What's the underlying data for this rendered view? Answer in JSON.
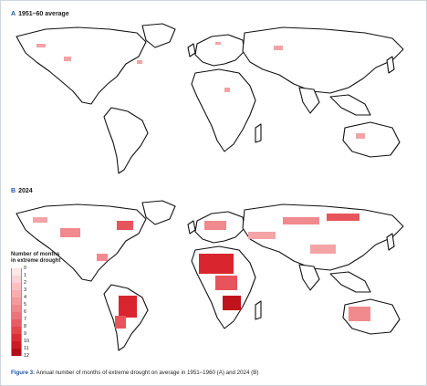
{
  "panels": [
    {
      "letter": "A",
      "title": "1951–60 average"
    },
    {
      "letter": "B",
      "title": "2024"
    }
  ],
  "legend": {
    "title": "Number of months in extreme drought",
    "levels": [
      "0",
      "1",
      "2",
      "3",
      "4",
      "5",
      "6",
      "7",
      "8",
      "9",
      "10",
      "11",
      "12"
    ],
    "colors": [
      "#ffffff",
      "#fde6e6",
      "#fbd3d4",
      "#f9c0c2",
      "#f6adb0",
      "#f4999d",
      "#f1868b",
      "#ee7379",
      "#e95c63",
      "#e2464e",
      "#d72f38",
      "#c81d26",
      "#b00f18"
    ]
  },
  "caption": {
    "label": "Figure 3:",
    "text": "Annual number of months of extreme drought on average in 1951–1960 (A) and 2024 (B)"
  }
}
